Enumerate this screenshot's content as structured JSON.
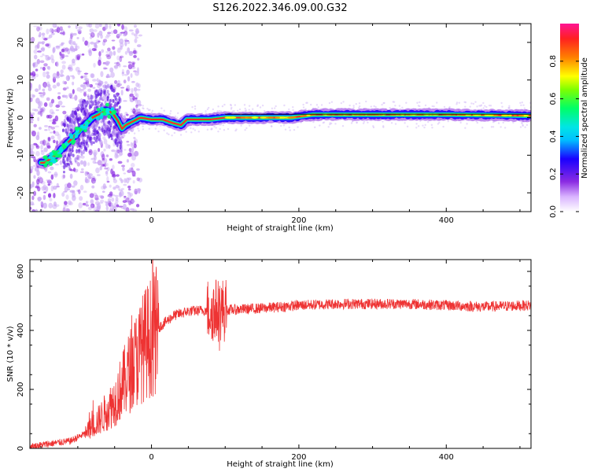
{
  "title": "S126.2022.346.09.00.G32",
  "chart_data": [
    {
      "type": "heatmap",
      "xlabel": "Height of straight line (km)",
      "ylabel": "Frequency (Hz)",
      "xlim": [
        -165,
        515
      ],
      "ylim": [
        -25,
        25
      ],
      "xticks": [
        0,
        200,
        400
      ],
      "yticks": [
        -20,
        -10,
        0,
        10,
        20
      ],
      "colorbar": {
        "label": "Normalized spectral amplitude",
        "range": [
          0,
          1
        ],
        "ticks": [
          0.0,
          0.2,
          0.4,
          0.6,
          0.8
        ],
        "colormap": [
          "#ffffff",
          "#d9b3ff",
          "#8a2be2",
          "#1a00ff",
          "#00bfff",
          "#00e5e5",
          "#00ff66",
          "#7fff00",
          "#ffff00",
          "#ff8000",
          "#ff2020",
          "#ff1493"
        ]
      },
      "ridge": [
        {
          "x": -145,
          "y": -12
        },
        {
          "x": -130,
          "y": -10
        },
        {
          "x": -115,
          "y": -7
        },
        {
          "x": -100,
          "y": -4
        },
        {
          "x": -90,
          "y": -2
        },
        {
          "x": -80,
          "y": 0
        },
        {
          "x": -70,
          "y": 1
        },
        {
          "x": -60,
          "y": 2
        },
        {
          "x": -52,
          "y": 1
        },
        {
          "x": -45,
          "y": -1
        },
        {
          "x": -40,
          "y": -3
        },
        {
          "x": -35,
          "y": -2
        },
        {
          "x": -25,
          "y": -1
        },
        {
          "x": -15,
          "y": 0
        },
        {
          "x": 0,
          "y": -0.5
        },
        {
          "x": 15,
          "y": -0.5
        },
        {
          "x": 30,
          "y": -1.5
        },
        {
          "x": 40,
          "y": -2
        },
        {
          "x": 48,
          "y": -0.5
        },
        {
          "x": 60,
          "y": -0.5
        },
        {
          "x": 80,
          "y": -0.5
        },
        {
          "x": 100,
          "y": 0
        },
        {
          "x": 150,
          "y": 0
        },
        {
          "x": 190,
          "y": 0
        },
        {
          "x": 220,
          "y": 0.8
        },
        {
          "x": 300,
          "y": 0.8
        },
        {
          "x": 400,
          "y": 0.8
        },
        {
          "x": 515,
          "y": 0.5
        }
      ],
      "reference_line_y": 0
    },
    {
      "type": "line",
      "xlabel": "Height of straight line (km)",
      "ylabel": "SNR (10 * v/v)",
      "xlim": [
        -165,
        515
      ],
      "ylim": [
        0,
        640
      ],
      "xticks": [
        0,
        200,
        400
      ],
      "yticks": [
        0,
        200,
        400,
        600
      ],
      "color": "#ee3333",
      "envelope": [
        {
          "x": -165,
          "y": 5
        },
        {
          "x": -140,
          "y": 15
        },
        {
          "x": -110,
          "y": 25
        },
        {
          "x": -90,
          "y": 50
        },
        {
          "x": -70,
          "y": 100
        },
        {
          "x": -50,
          "y": 160
        },
        {
          "x": -30,
          "y": 260
        },
        {
          "x": -10,
          "y": 350
        },
        {
          "x": 10,
          "y": 410
        },
        {
          "x": 30,
          "y": 450
        },
        {
          "x": 50,
          "y": 465
        },
        {
          "x": 70,
          "y": 468
        },
        {
          "x": 90,
          "y": 470
        },
        {
          "x": 110,
          "y": 470
        },
        {
          "x": 150,
          "y": 475
        },
        {
          "x": 200,
          "y": 485
        },
        {
          "x": 250,
          "y": 490
        },
        {
          "x": 300,
          "y": 490
        },
        {
          "x": 350,
          "y": 490
        },
        {
          "x": 400,
          "y": 485
        },
        {
          "x": 450,
          "y": 480
        },
        {
          "x": 515,
          "y": 485
        }
      ],
      "spike_region": {
        "x0": 75,
        "x1": 102,
        "max": 630,
        "min": 250
      }
    }
  ]
}
